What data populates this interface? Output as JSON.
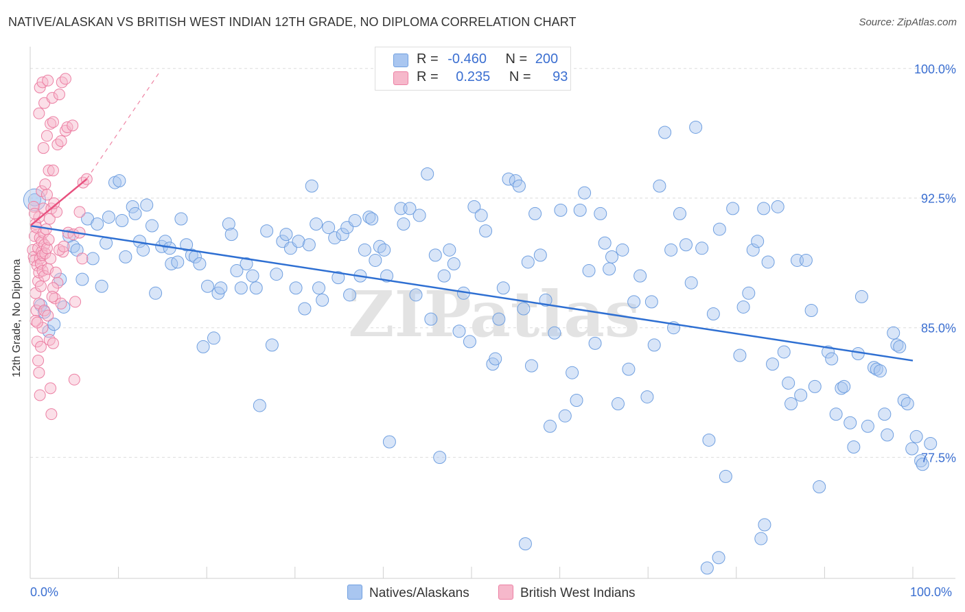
{
  "title": "NATIVE/ALASKAN VS BRITISH WEST INDIAN 12TH GRADE, NO DIPLOMA CORRELATION CHART",
  "source": "Source: ZipAtlas.com",
  "watermark": "ZIPatlas",
  "colors": {
    "blue_fill": "#a9c6f0",
    "blue_stroke": "#6f9fe0",
    "blue_line": "#2e6fd2",
    "pink_fill": "#f6b8cb",
    "pink_stroke": "#ec7fa3",
    "pink_line": "#e8507e",
    "axis_label": "#3b6fd1",
    "grid": "#dcdcdc"
  },
  "legend": {
    "rows": [
      {
        "r_label": "R =",
        "r_value": "-0.460",
        "n_label": "N =",
        "n_value": "200",
        "color": "#a9c6f0",
        "border": "#6f9fe0"
      },
      {
        "r_label": "R =",
        "r_value": "0.235",
        "n_label": "N =",
        "n_value": "93",
        "color": "#f6b8cb",
        "border": "#ec7fa3"
      }
    ]
  },
  "bottom_legend": [
    {
      "label": "Natives/Alaskans",
      "color": "#a9c6f0",
      "border": "#6f9fe0"
    },
    {
      "label": "British West Indians",
      "color": "#f6b8cb",
      "border": "#ec7fa3"
    }
  ],
  "chart_data": {
    "type": "scatter",
    "title": "NATIVE/ALASKAN VS BRITISH WEST INDIAN 12TH GRADE, NO DIPLOMA CORRELATION CHART",
    "xlabel": "",
    "ylabel": "12th Grade, No Diploma",
    "xlim": [
      0,
      100
    ],
    "ylim": [
      70.5,
      101.5
    ],
    "x_tick_labels": [
      "0.0%",
      "100.0%"
    ],
    "y_ticks": [
      77.5,
      85.0,
      92.5,
      100.0
    ],
    "y_tick_labels": [
      "77.5%",
      "85.0%",
      "92.5%",
      "100.0%"
    ],
    "grid": true,
    "series": [
      {
        "name": "Natives/Alaskans",
        "r": -0.46,
        "n": 200,
        "trend": {
          "x": [
            0,
            100
          ],
          "y": [
            90.9,
            83.1
          ]
        },
        "points": [
          [
            0.5,
            92.4
          ],
          [
            1.2,
            86.3
          ],
          [
            1.6,
            85.9
          ],
          [
            2.1,
            84.8
          ],
          [
            2.7,
            85.2
          ],
          [
            3.4,
            87.8
          ],
          [
            3.8,
            86.2
          ],
          [
            4.4,
            90.3
          ],
          [
            4.9,
            89.7
          ],
          [
            5.3,
            89.5
          ],
          [
            5.9,
            87.8
          ],
          [
            6.5,
            91.3
          ],
          [
            7.1,
            89.0
          ],
          [
            7.6,
            91.0
          ],
          [
            8.1,
            87.4
          ],
          [
            8.6,
            89.9
          ],
          [
            8.9,
            91.4
          ],
          [
            9.6,
            93.4
          ],
          [
            10.1,
            93.5
          ],
          [
            10.4,
            91.2
          ],
          [
            10.8,
            89.1
          ],
          [
            11.6,
            92.0
          ],
          [
            11.9,
            91.6
          ],
          [
            12.4,
            90.0
          ],
          [
            12.8,
            89.5
          ],
          [
            13.2,
            92.1
          ],
          [
            13.8,
            90.9
          ],
          [
            14.2,
            87.0
          ],
          [
            14.9,
            89.7
          ],
          [
            15.3,
            90.0
          ],
          [
            15.8,
            89.6
          ],
          [
            16.0,
            88.7
          ],
          [
            16.7,
            88.8
          ],
          [
            17.1,
            91.3
          ],
          [
            17.7,
            89.8
          ],
          [
            18.3,
            89.2
          ],
          [
            18.7,
            89.1
          ],
          [
            19.2,
            88.7
          ],
          [
            19.6,
            83.9
          ],
          [
            20.1,
            87.4
          ],
          [
            20.8,
            84.4
          ],
          [
            21.3,
            87.0
          ],
          [
            21.6,
            87.3
          ],
          [
            22.5,
            91.0
          ],
          [
            22.8,
            90.4
          ],
          [
            23.4,
            88.3
          ],
          [
            23.9,
            87.3
          ],
          [
            24.5,
            88.7
          ],
          [
            25.2,
            88.0
          ],
          [
            25.6,
            87.3
          ],
          [
            26.0,
            80.5
          ],
          [
            26.8,
            90.6
          ],
          [
            27.4,
            84.0
          ],
          [
            27.9,
            88.1
          ],
          [
            28.6,
            90.0
          ],
          [
            29.0,
            90.4
          ],
          [
            29.5,
            89.6
          ],
          [
            30.1,
            87.3
          ],
          [
            30.4,
            90.0
          ],
          [
            31.1,
            86.1
          ],
          [
            31.6,
            89.8
          ],
          [
            31.9,
            93.2
          ],
          [
            32.4,
            91.0
          ],
          [
            32.7,
            87.3
          ],
          [
            33.1,
            86.6
          ],
          [
            33.8,
            90.8
          ],
          [
            34.5,
            90.2
          ],
          [
            34.9,
            87.9
          ],
          [
            35.4,
            90.4
          ],
          [
            35.9,
            90.8
          ],
          [
            36.2,
            86.9
          ],
          [
            36.8,
            91.2
          ],
          [
            37.4,
            88.0
          ],
          [
            37.9,
            89.5
          ],
          [
            38.4,
            91.4
          ],
          [
            38.7,
            91.3
          ],
          [
            39.1,
            88.9
          ],
          [
            39.6,
            89.7
          ],
          [
            40.1,
            89.5
          ],
          [
            40.4,
            88.0
          ],
          [
            40.7,
            78.4
          ],
          [
            42.0,
            91.9
          ],
          [
            42.3,
            91.0
          ],
          [
            43.0,
            91.9
          ],
          [
            43.7,
            86.9
          ],
          [
            44.1,
            91.5
          ],
          [
            45.0,
            93.9
          ],
          [
            45.4,
            85.5
          ],
          [
            45.9,
            89.2
          ],
          [
            46.4,
            77.5
          ],
          [
            46.9,
            88.0
          ],
          [
            47.5,
            89.5
          ],
          [
            48.0,
            88.7
          ],
          [
            48.6,
            84.8
          ],
          [
            49.1,
            87.0
          ],
          [
            49.8,
            84.2
          ],
          [
            50.3,
            92.0
          ],
          [
            51.1,
            91.5
          ],
          [
            51.6,
            90.6
          ],
          [
            52.4,
            82.9
          ],
          [
            52.7,
            83.2
          ],
          [
            53.1,
            85.5
          ],
          [
            53.6,
            87.3
          ],
          [
            54.2,
            93.6
          ],
          [
            55.0,
            93.5
          ],
          [
            55.4,
            93.2
          ],
          [
            55.9,
            86.1
          ],
          [
            56.4,
            88.8
          ],
          [
            56.8,
            82.8
          ],
          [
            57.2,
            91.6
          ],
          [
            57.8,
            89.2
          ],
          [
            58.4,
            86.6
          ],
          [
            58.9,
            79.3
          ],
          [
            59.4,
            84.7
          ],
          [
            60.1,
            91.8
          ],
          [
            60.6,
            79.9
          ],
          [
            61.4,
            82.4
          ],
          [
            61.9,
            80.8
          ],
          [
            62.3,
            91.8
          ],
          [
            62.8,
            92.8
          ],
          [
            63.3,
            88.3
          ],
          [
            64.0,
            84.1
          ],
          [
            64.6,
            91.6
          ],
          [
            65.1,
            89.9
          ],
          [
            65.6,
            88.4
          ],
          [
            65.9,
            89.1
          ],
          [
            66.6,
            80.6
          ],
          [
            67.1,
            89.5
          ],
          [
            67.8,
            82.6
          ],
          [
            68.4,
            86.5
          ],
          [
            69.1,
            88.0
          ],
          [
            69.9,
            81.0
          ],
          [
            70.4,
            86.5
          ],
          [
            70.7,
            84.0
          ],
          [
            71.3,
            93.2
          ],
          [
            71.9,
            96.3
          ],
          [
            72.6,
            89.5
          ],
          [
            72.9,
            85.0
          ],
          [
            73.6,
            91.6
          ],
          [
            74.3,
            89.8
          ],
          [
            74.9,
            87.6
          ],
          [
            75.4,
            96.6
          ],
          [
            76.1,
            89.6
          ],
          [
            76.9,
            78.5
          ],
          [
            77.4,
            85.8
          ],
          [
            78.1,
            90.7
          ],
          [
            78.8,
            76.4
          ],
          [
            79.6,
            91.9
          ],
          [
            80.4,
            83.4
          ],
          [
            80.8,
            86.2
          ],
          [
            81.4,
            87.0
          ],
          [
            81.9,
            89.5
          ],
          [
            82.4,
            90.0
          ],
          [
            83.1,
            91.9
          ],
          [
            83.6,
            88.8
          ],
          [
            84.1,
            82.9
          ],
          [
            84.7,
            92.0
          ],
          [
            85.4,
            83.6
          ],
          [
            85.9,
            81.8
          ],
          [
            86.2,
            80.6
          ],
          [
            86.9,
            88.9
          ],
          [
            87.3,
            81.1
          ],
          [
            87.9,
            88.9
          ],
          [
            88.5,
            86.0
          ],
          [
            88.9,
            81.6
          ],
          [
            89.4,
            75.8
          ],
          [
            90.4,
            83.6
          ],
          [
            90.8,
            83.2
          ],
          [
            91.3,
            80.0
          ],
          [
            91.9,
            81.5
          ],
          [
            92.2,
            81.6
          ],
          [
            92.9,
            79.5
          ],
          [
            93.3,
            78.1
          ],
          [
            93.8,
            83.5
          ],
          [
            94.2,
            86.8
          ],
          [
            94.9,
            79.3
          ],
          [
            95.6,
            82.7
          ],
          [
            95.9,
            82.6
          ],
          [
            96.3,
            82.5
          ],
          [
            96.8,
            80.0
          ],
          [
            97.1,
            78.8
          ],
          [
            97.8,
            84.7
          ],
          [
            98.2,
            84.0
          ],
          [
            98.5,
            83.9
          ],
          [
            99.0,
            80.8
          ],
          [
            99.4,
            80.6
          ],
          [
            99.9,
            78.0
          ],
          [
            100.4,
            78.7
          ],
          [
            100.9,
            77.3
          ],
          [
            101.1,
            77.1
          ],
          [
            102.0,
            78.3
          ],
          [
            56.1,
            72.5
          ],
          [
            76.7,
            71.1
          ],
          [
            78.0,
            71.7
          ],
          [
            83.2,
            73.6
          ],
          [
            82.8,
            72.8
          ]
        ]
      },
      {
        "name": "British West Indians",
        "r": 0.235,
        "n": 93,
        "trend": {
          "x": [
            0,
            6.4
          ],
          "y": [
            90.9,
            93.6
          ]
        },
        "trend_dashed": {
          "x": [
            6.4,
            14.8
          ],
          "y": [
            93.6,
            99.9
          ]
        },
        "points": [
          [
            0.3,
            89.5
          ],
          [
            0.4,
            89.1
          ],
          [
            0.5,
            90.3
          ],
          [
            0.5,
            88.9
          ],
          [
            0.6,
            91.0
          ],
          [
            0.6,
            87.0
          ],
          [
            0.7,
            86.0
          ],
          [
            0.7,
            90.8
          ],
          [
            0.8,
            88.6
          ],
          [
            0.9,
            89.6
          ],
          [
            0.9,
            87.7
          ],
          [
            1.0,
            91.4
          ],
          [
            1.0,
            88.2
          ],
          [
            1.1,
            90.2
          ],
          [
            1.1,
            89.0
          ],
          [
            1.2,
            88.7
          ],
          [
            1.2,
            87.4
          ],
          [
            1.3,
            89.4
          ],
          [
            1.3,
            90.0
          ],
          [
            1.4,
            89.2
          ],
          [
            1.4,
            88.3
          ],
          [
            1.5,
            91.9
          ],
          [
            1.5,
            90.5
          ],
          [
            1.6,
            89.8
          ],
          [
            1.6,
            88.0
          ],
          [
            1.7,
            89.3
          ],
          [
            1.8,
            90.7
          ],
          [
            1.9,
            89.6
          ],
          [
            2.0,
            88.4
          ],
          [
            2.1,
            90.1
          ],
          [
            2.2,
            91.3
          ],
          [
            2.3,
            89.0
          ],
          [
            0.8,
            84.2
          ],
          [
            0.9,
            83.1
          ],
          [
            1.0,
            82.4
          ],
          [
            1.1,
            81.1
          ],
          [
            1.2,
            83.9
          ],
          [
            1.0,
            86.4
          ],
          [
            1.4,
            85.0
          ],
          [
            2.2,
            84.3
          ],
          [
            2.8,
            86.7
          ],
          [
            3.5,
            86.4
          ],
          [
            5.1,
            86.5
          ],
          [
            2.4,
            91.9
          ],
          [
            3.0,
            91.7
          ],
          [
            3.7,
            89.4
          ],
          [
            4.3,
            90.5
          ],
          [
            4.9,
            90.4
          ],
          [
            5.6,
            90.5
          ],
          [
            1.3,
            92.9
          ],
          [
            1.7,
            93.3
          ],
          [
            2.1,
            94.1
          ],
          [
            2.6,
            94.1
          ],
          [
            3.1,
            95.6
          ],
          [
            3.5,
            95.8
          ],
          [
            4.0,
            96.4
          ],
          [
            1.5,
            95.4
          ],
          [
            1.9,
            96.1
          ],
          [
            2.3,
            96.8
          ],
          [
            2.6,
            96.9
          ],
          [
            4.2,
            96.6
          ],
          [
            4.8,
            96.7
          ],
          [
            1.1,
            98.9
          ],
          [
            1.4,
            99.2
          ],
          [
            2.0,
            99.3
          ],
          [
            3.6,
            99.2
          ],
          [
            4.0,
            99.4
          ],
          [
            1.0,
            97.4
          ],
          [
            1.6,
            98.0
          ],
          [
            2.5,
            98.3
          ],
          [
            3.3,
            98.5
          ],
          [
            5.6,
            91.7
          ],
          [
            5.9,
            89.0
          ],
          [
            6.0,
            93.4
          ],
          [
            6.4,
            93.6
          ],
          [
            1.9,
            92.7
          ],
          [
            2.7,
            92.2
          ],
          [
            0.4,
            92.0
          ],
          [
            0.5,
            91.6
          ],
          [
            2.9,
            88.2
          ],
          [
            3.1,
            87.6
          ],
          [
            2.6,
            87.3
          ],
          [
            2.5,
            86.8
          ],
          [
            0.6,
            85.4
          ],
          [
            0.8,
            85.3
          ],
          [
            1.6,
            86.0
          ],
          [
            2.0,
            85.7
          ],
          [
            2.3,
            81.5
          ],
          [
            2.4,
            80.0
          ],
          [
            5.0,
            82.0
          ],
          [
            2.6,
            84.1
          ],
          [
            3.3,
            89.5
          ],
          [
            3.8,
            89.7
          ]
        ]
      }
    ]
  }
}
